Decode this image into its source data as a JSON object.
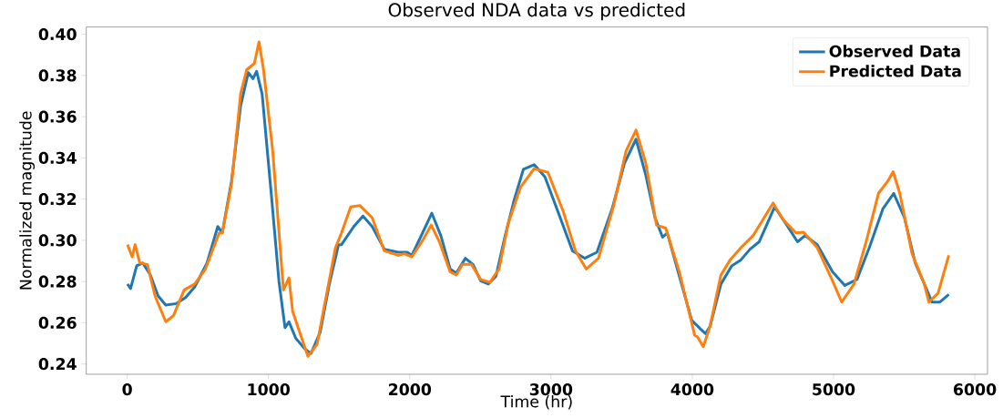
{
  "chart_data": {
    "type": "line",
    "title": "Observed NDA data vs predicted",
    "xlabel": "Time (hr)",
    "ylabel": "Normalized magnitude",
    "xlim": [
      -290,
      6090
    ],
    "ylim": [
      0.235,
      0.4035
    ],
    "xticks": [
      0,
      1000,
      2000,
      3000,
      4000,
      5000,
      6000
    ],
    "yticks": [
      {
        "value": 0.24,
        "label": "0.24"
      },
      {
        "value": 0.26,
        "label": "0.26"
      },
      {
        "value": 0.28,
        "label": "0.28"
      },
      {
        "value": 0.3,
        "label": "0.30"
      },
      {
        "value": 0.32,
        "label": "0.32"
      },
      {
        "value": 0.34,
        "label": "0.34"
      },
      {
        "value": 0.36,
        "label": "0.36"
      },
      {
        "value": 0.38,
        "label": "0.38"
      },
      {
        "value": 0.4,
        "label": "0.40"
      }
    ],
    "legend": "top right",
    "grid": false,
    "marker": "none",
    "line_style": "solid",
    "series": [
      {
        "name": "Observed Data",
        "color": "#1f77b4",
        "x": [
          2,
          24,
          67,
          110,
          164,
          219,
          273,
          348,
          413,
          478,
          565,
          641,
          673,
          738,
          803,
          857,
          890,
          916,
          955,
          1020,
          1074,
          1117,
          1145,
          1193,
          1258,
          1301,
          1366,
          1431,
          1496,
          1517,
          1604,
          1669,
          1734,
          1820,
          1918,
          1983,
          2015,
          2091,
          2156,
          2221,
          2286,
          2329,
          2394,
          2448,
          2502,
          2556,
          2610,
          2675,
          2740,
          2805,
          2881,
          2957,
          3065,
          3152,
          3238,
          3325,
          3433,
          3520,
          3602,
          3671,
          3736,
          3790,
          3823,
          3996,
          4061,
          4094,
          4126,
          4203,
          4279,
          4344,
          4409,
          4474,
          4583,
          4669,
          4745,
          4799,
          4885,
          4993,
          5080,
          5166,
          5253,
          5350,
          5426,
          5502,
          5578,
          5643,
          5697,
          5751,
          5816
        ],
        "values": [
          0.2788,
          0.2766,
          0.2876,
          0.289,
          0.2832,
          0.273,
          0.2686,
          0.2693,
          0.2722,
          0.2774,
          0.289,
          0.3067,
          0.3036,
          0.3286,
          0.3653,
          0.3814,
          0.3784,
          0.382,
          0.371,
          0.3223,
          0.2803,
          0.2576,
          0.2605,
          0.2525,
          0.2473,
          0.2451,
          0.2554,
          0.2788,
          0.2979,
          0.2979,
          0.3067,
          0.3118,
          0.3067,
          0.2957,
          0.2942,
          0.2942,
          0.2927,
          0.3036,
          0.3132,
          0.3021,
          0.2861,
          0.284,
          0.2913,
          0.2883,
          0.2803,
          0.2788,
          0.2825,
          0.3021,
          0.3198,
          0.3345,
          0.3367,
          0.3308,
          0.311,
          0.2949,
          0.2913,
          0.2942,
          0.3154,
          0.3374,
          0.3491,
          0.3316,
          0.311,
          0.3015,
          0.3036,
          0.2612,
          0.2568,
          0.2547,
          0.2583,
          0.2788,
          0.2876,
          0.2905,
          0.2957,
          0.2993,
          0.3162,
          0.3074,
          0.2993,
          0.3023,
          0.2979,
          0.2847,
          0.2781,
          0.281,
          0.2964,
          0.3154,
          0.3228,
          0.311,
          0.2891,
          0.2788,
          0.27,
          0.27,
          0.2737
        ]
      },
      {
        "name": "Predicted Data",
        "color": "#ff7f0e",
        "x": [
          2,
          35,
          56,
          89,
          143,
          197,
          273,
          327,
          403,
          478,
          554,
          651,
          673,
          738,
          803,
          846,
          900,
          933,
          965,
          1030,
          1106,
          1145,
          1171,
          1214,
          1279,
          1344,
          1409,
          1474,
          1517,
          1582,
          1647,
          1734,
          1820,
          1918,
          1961,
          2015,
          2091,
          2152,
          2210,
          2286,
          2329,
          2373,
          2437,
          2502,
          2567,
          2632,
          2697,
          2784,
          2881,
          2978,
          3087,
          3173,
          3249,
          3336,
          3444,
          3531,
          3602,
          3671,
          3747,
          3812,
          3909,
          4017,
          4037,
          4078,
          4126,
          4203,
          4268,
          4344,
          4431,
          4496,
          4572,
          4648,
          4734,
          4788,
          4885,
          4993,
          5058,
          5145,
          5231,
          5318,
          5383,
          5422,
          5469,
          5556,
          5643,
          5675,
          5740,
          5816
        ],
        "values": [
          0.2979,
          0.292,
          0.2979,
          0.289,
          0.2883,
          0.273,
          0.2605,
          0.2634,
          0.2759,
          0.2788,
          0.2861,
          0.3036,
          0.3036,
          0.3271,
          0.3711,
          0.3828,
          0.3858,
          0.3963,
          0.3828,
          0.3433,
          0.2759,
          0.2818,
          0.2656,
          0.2568,
          0.2437,
          0.2495,
          0.273,
          0.2964,
          0.3036,
          0.3162,
          0.3169,
          0.311,
          0.2949,
          0.2927,
          0.2935,
          0.292,
          0.2999,
          0.3074,
          0.2993,
          0.2847,
          0.2832,
          0.2883,
          0.2883,
          0.281,
          0.2796,
          0.2861,
          0.3081,
          0.3257,
          0.3348,
          0.333,
          0.314,
          0.2949,
          0.2861,
          0.2913,
          0.3169,
          0.3433,
          0.3535,
          0.3374,
          0.3074,
          0.3059,
          0.2846,
          0.2539,
          0.2532,
          0.2484,
          0.2583,
          0.2832,
          0.2905,
          0.2964,
          0.3023,
          0.3096,
          0.3181,
          0.3096,
          0.3036,
          0.3039,
          0.2964,
          0.2803,
          0.27,
          0.2788,
          0.2993,
          0.3228,
          0.3286,
          0.3333,
          0.3228,
          0.2935,
          0.2788,
          0.27,
          0.2744,
          0.2927
        ]
      }
    ]
  }
}
